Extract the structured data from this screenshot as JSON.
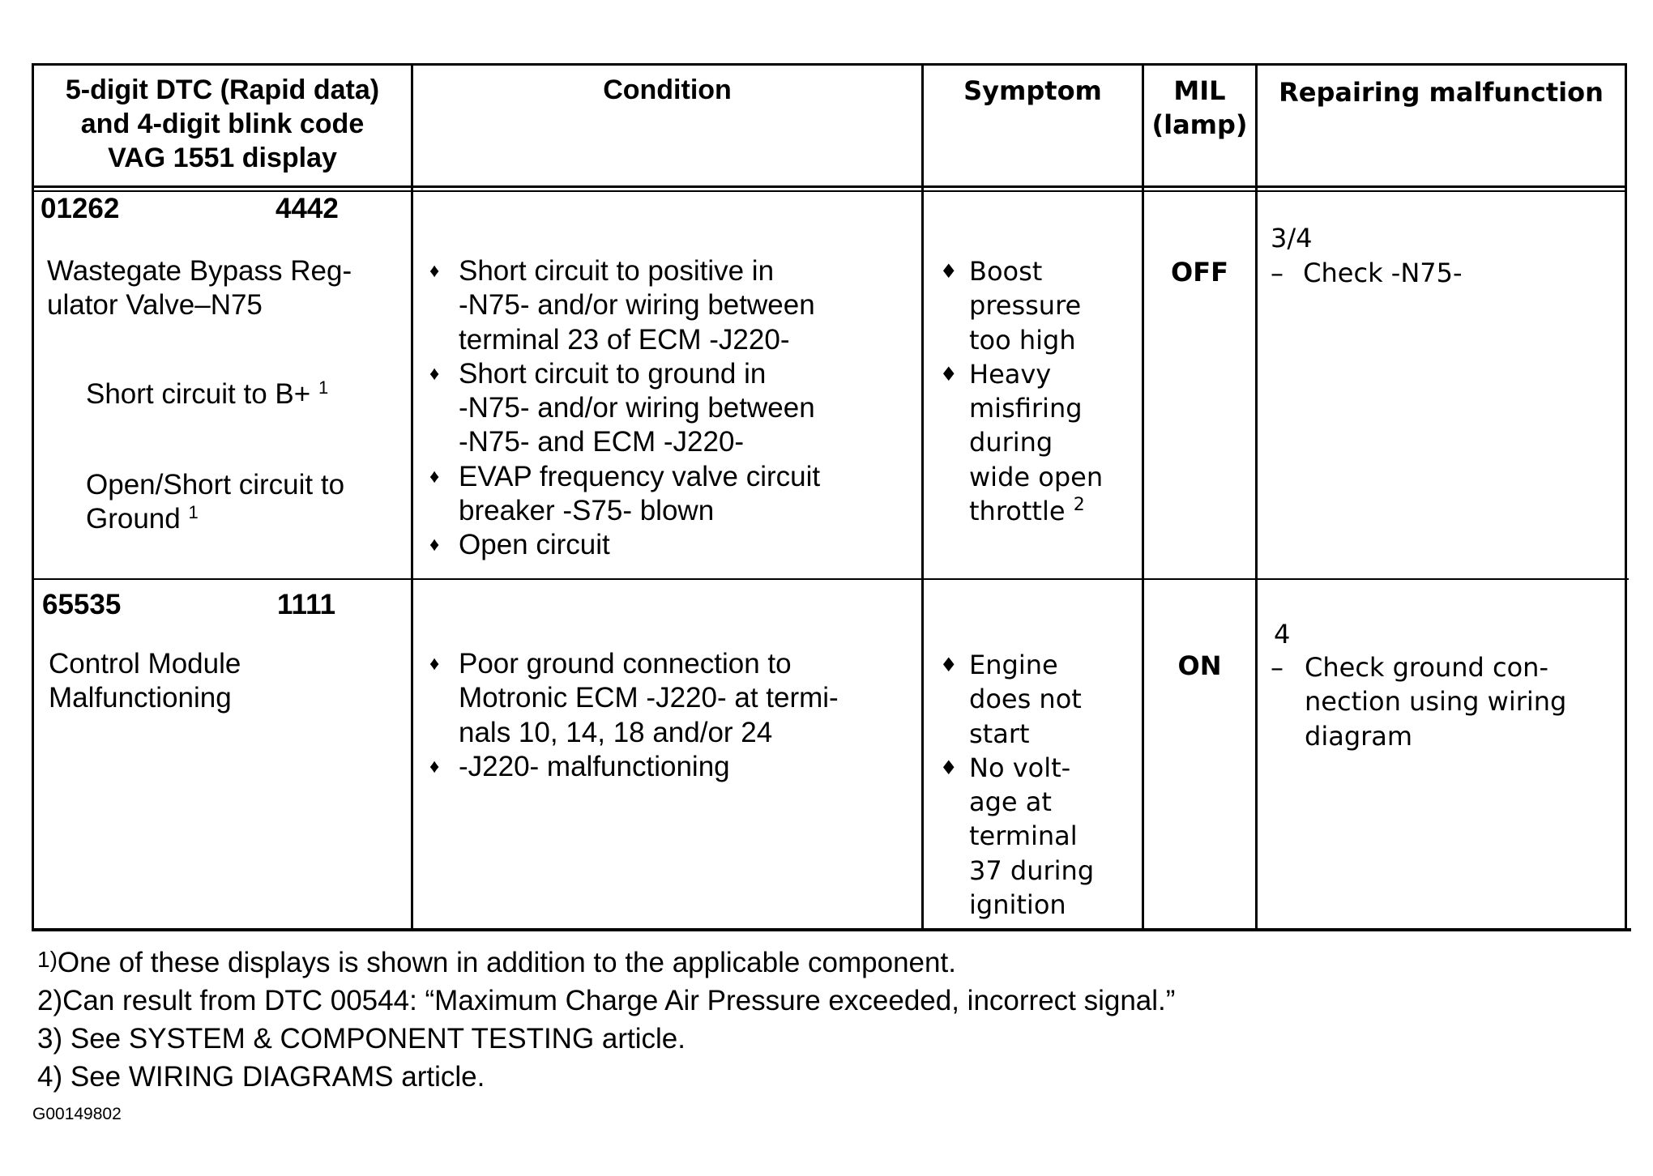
{
  "headers": {
    "dtc": [
      "5-digit DTC (Rapid data)",
      "and 4-digit blink code",
      "VAG 1551 display"
    ],
    "condition": "Condition",
    "symptom": "Symptom",
    "mil": [
      "MIL",
      "(lamp)"
    ],
    "repair": "Repairing malfunction"
  },
  "rows": [
    {
      "dtc5": "01262",
      "blink": "4442",
      "component": [
        "Wastegate Bypass Reg-",
        "ulator Valve–N75"
      ],
      "display1": "Short circuit to B+",
      "display1_note": "1",
      "display2": [
        "Open/Short circuit to",
        "Ground"
      ],
      "display2_note": "1",
      "conditions": [
        [
          "Short circuit to positive in",
          "-N75- and/or wiring between",
          "terminal 23 of ECM -J220-"
        ],
        [
          "Short circuit to ground in",
          "-N75- and/or wiring between",
          "-N75- and ECM -J220-"
        ],
        [
          "EVAP frequency valve circuit",
          "breaker -S75- blown"
        ],
        [
          "Open circuit"
        ]
      ],
      "symptoms": [
        [
          "Boost",
          "pressure",
          "too high"
        ],
        [
          "Heavy",
          "misfiring",
          "during",
          "wide open",
          "throttle"
        ]
      ],
      "symptom_note": "2",
      "mil": "OFF",
      "repair_ref": "3/4",
      "repair": [
        "Check -N75-"
      ]
    },
    {
      "dtc5": "65535",
      "blink": "1111",
      "component": [
        "Control Module",
        "Malfunctioning"
      ],
      "conditions": [
        [
          "Poor ground connection to",
          "Motronic ECM -J220- at termi-",
          "nals 10, 14, 18 and/or 24"
        ],
        [
          "-J220- malfunctioning"
        ]
      ],
      "symptoms": [
        [
          "Engine",
          "does not",
          "start"
        ],
        [
          "No volt-",
          "age at",
          "terminal",
          "37 during",
          "ignition"
        ]
      ],
      "mil": "ON",
      "repair_ref": "4",
      "repair": [
        "Check ground con-",
        "nection using wiring",
        "diagram"
      ]
    }
  ],
  "bullet_glyph": "♦",
  "dash_glyph": "–",
  "footnotes": [
    {
      "num": "1)",
      "text": "One of these displays is shown in addition to the applicable component."
    },
    {
      "num": "2)",
      "text": "Can result from DTC 00544:  “Maximum Charge Air Pressure exceeded, incorrect signal.”"
    },
    {
      "num": "3)",
      "text": " See SYSTEM & COMPONENT TESTING article."
    },
    {
      "num": "4)",
      "text": " See WIRING DIAGRAMS article."
    }
  ],
  "figure_id": "G00149802"
}
